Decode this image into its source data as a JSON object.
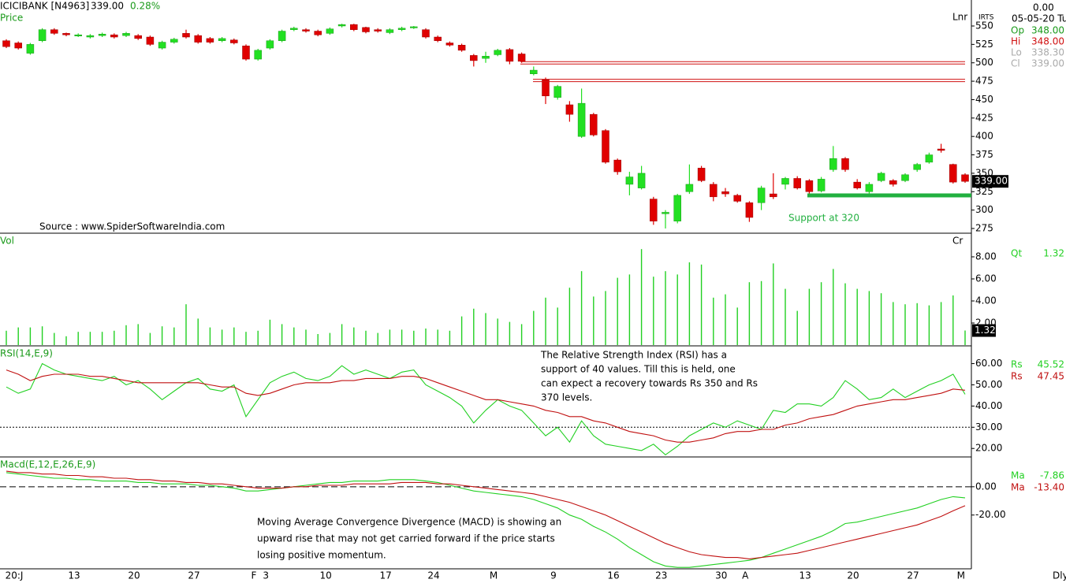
{
  "header": {
    "symbol": "ICICIBANK [N4963]",
    "last": "339.00",
    "change": "0.28%",
    "top_right": "0.00",
    "irts": "IRTS",
    "date": "05-05-20 Tu",
    "ohlc": [
      {
        "label": "Op",
        "value": "348.00"
      },
      {
        "label": "Hi",
        "value": "348.00"
      },
      {
        "label": "Lo",
        "value": "338.30"
      },
      {
        "label": "Cl",
        "value": "339.00"
      }
    ],
    "period": "Dly",
    "source": "Source : www.SpiderSoftwareIndia.com"
  },
  "chart_data": [
    {
      "type": "candlestick",
      "title": "Price",
      "scale_label": "Lnr",
      "up_color": "#22e022",
      "down_color": "#e00000",
      "categories": [
        "20:J",
        null,
        null,
        null,
        null,
        "13",
        null,
        null,
        null,
        null,
        "20",
        null,
        null,
        null,
        null,
        "27",
        null,
        null,
        null,
        null,
        "F",
        "3",
        null,
        null,
        null,
        null,
        "10",
        null,
        null,
        null,
        null,
        "17",
        null,
        null,
        null,
        "24",
        null,
        null,
        null,
        null,
        "M",
        null,
        null,
        null,
        null,
        "9",
        null,
        null,
        null,
        null,
        "16",
        null,
        null,
        null,
        "23",
        null,
        null,
        null,
        null,
        "30",
        null,
        "A",
        null,
        null,
        null,
        null,
        "13",
        null,
        null,
        null,
        "20",
        null,
        null,
        null,
        null,
        "27",
        null,
        null,
        null,
        "M",
        null
      ],
      "open": [
        530,
        527,
        513,
        530,
        545,
        540,
        537,
        535,
        537,
        538,
        537,
        537,
        535,
        520,
        528,
        540,
        537,
        533,
        530,
        531,
        523,
        505,
        520,
        530,
        545,
        545,
        543,
        540,
        550,
        552,
        548,
        545,
        541,
        545,
        548,
        545,
        535,
        527,
        524,
        510,
        506,
        511,
        518,
        512,
        485,
        477,
        453,
        443,
        400,
        430,
        408,
        368,
        335,
        330,
        315,
        295,
        285,
        325,
        357,
        335,
        325,
        320,
        310,
        310,
        322,
        335,
        343,
        340,
        326,
        355,
        370,
        338,
        325,
        340,
        340,
        340,
        355,
        365,
        383,
        362,
        348
      ],
      "high": [
        532,
        529,
        527,
        547,
        547,
        541,
        540,
        539,
        541,
        540,
        542,
        539,
        537,
        530,
        534,
        545,
        539,
        535,
        535,
        533,
        525,
        519,
        532,
        545,
        549,
        547,
        545,
        548,
        553,
        553,
        549,
        547,
        547,
        549,
        550,
        547,
        537,
        529,
        526,
        512,
        515,
        519,
        520,
        514,
        495,
        480,
        470,
        448,
        465,
        432,
        410,
        370,
        352,
        360,
        318,
        300,
        322,
        362,
        360,
        338,
        330,
        322,
        312,
        333,
        350,
        345,
        346,
        342,
        345,
        387,
        372,
        342,
        338,
        352,
        342,
        350,
        364,
        378,
        390,
        363,
        350
      ],
      "low": [
        520,
        518,
        511,
        528,
        538,
        536,
        535,
        533,
        535,
        533,
        535,
        531,
        523,
        518,
        526,
        533,
        526,
        526,
        528,
        525,
        503,
        503,
        518,
        528,
        543,
        541,
        536,
        538,
        548,
        543,
        540,
        541,
        539,
        543,
        546,
        533,
        528,
        522,
        515,
        495,
        500,
        509,
        498,
        500,
        483,
        444,
        450,
        420,
        398,
        400,
        363,
        348,
        320,
        328,
        280,
        275,
        282,
        322,
        338,
        312,
        318,
        310,
        284,
        300,
        315,
        328,
        328,
        322,
        324,
        352,
        352,
        328,
        322,
        338,
        332,
        338,
        352,
        363,
        378,
        336,
        337
      ],
      "close": [
        522,
        520,
        525,
        545,
        540,
        538,
        538,
        537,
        539,
        535,
        540,
        533,
        525,
        528,
        532,
        535,
        528,
        528,
        533,
        527,
        505,
        517,
        530,
        543,
        547,
        543,
        538,
        546,
        552,
        545,
        542,
        543,
        545,
        547,
        549,
        535,
        530,
        524,
        517,
        503,
        509,
        517,
        502,
        502,
        490,
        455,
        468,
        430,
        445,
        402,
        365,
        352,
        345,
        350,
        285,
        297,
        320,
        335,
        340,
        318,
        322,
        312,
        290,
        330,
        318,
        343,
        330,
        325,
        342,
        370,
        355,
        330,
        335,
        350,
        335,
        348,
        362,
        375,
        381,
        338,
        339
      ],
      "ylim": [
        268.6,
        585.3
      ],
      "yticks": [
        275,
        300,
        325,
        350,
        375,
        400,
        425,
        450,
        475,
        500,
        525,
        550
      ],
      "resistance_levels": [
        500,
        476
      ],
      "resistance_color": "#d01010",
      "support": {
        "value": 320,
        "label": "Support at 320",
        "color": "#22b040"
      }
    },
    {
      "type": "bar",
      "title": "Vol",
      "scale_label": "Cr",
      "name": "Qt",
      "value_label": "1.32",
      "color": "#22d022",
      "values": [
        1.3,
        1.6,
        1.6,
        1.7,
        1.1,
        0.8,
        1.2,
        1.2,
        1.2,
        1.3,
        1.8,
        1.9,
        1.1,
        1.7,
        1.6,
        3.7,
        2.4,
        1.6,
        1.4,
        1.6,
        1.2,
        1.3,
        2.3,
        1.9,
        1.6,
        1.4,
        1.0,
        1.1,
        1.9,
        1.6,
        1.3,
        1.1,
        1.4,
        1.4,
        1.3,
        1.5,
        1.4,
        1.3,
        2.6,
        3.3,
        2.9,
        2.4,
        2.1,
        1.9,
        3.1,
        4.3,
        3.4,
        5.2,
        6.7,
        4.4,
        4.9,
        6.1,
        6.4,
        8.7,
        6.2,
        6.7,
        6.4,
        7.5,
        7.3,
        4.3,
        4.6,
        3.4,
        5.7,
        5.8,
        7.4,
        5.1,
        3.1,
        5.1,
        5.7,
        6.9,
        5.6,
        5.1,
        4.9,
        4.7,
        3.9,
        3.7,
        3.8,
        3.6,
        3.9,
        4.5,
        1.32
      ],
      "ylim": [
        0,
        10.07
      ],
      "yticks": [
        {
          "value": 2,
          "label": "2.00"
        },
        {
          "value": 4,
          "label": "4.00"
        },
        {
          "value": 6,
          "label": "6.00"
        },
        {
          "value": 8,
          "label": "8.00"
        }
      ]
    },
    {
      "type": "line",
      "title": "RSI(14,E,9)",
      "series": [
        {
          "name": "Rs",
          "color": "#22d022",
          "value_label": "45.52",
          "values": [
            49,
            46,
            48,
            60,
            57,
            55,
            54,
            53,
            52,
            54,
            50,
            52,
            48,
            43,
            47,
            51,
            53,
            48,
            47,
            50,
            35,
            43,
            51,
            54,
            56,
            53,
            52,
            54,
            59,
            55,
            57,
            55,
            53,
            56,
            57,
            50,
            47,
            44,
            40,
            32,
            38,
            43,
            40,
            38,
            32,
            26,
            30,
            23,
            33,
            26,
            22,
            21,
            20,
            19,
            22,
            17,
            21,
            26,
            29,
            32,
            30,
            33,
            31,
            29,
            38,
            37,
            41,
            41,
            40,
            44,
            52,
            48,
            43,
            44,
            48,
            44,
            47,
            50,
            52,
            55,
            45.52
          ]
        },
        {
          "name": "Rs",
          "color": "#c01010",
          "value_label": "47.45",
          "values": [
            57,
            55,
            52,
            54,
            55,
            55,
            55,
            54,
            54,
            53,
            52,
            51,
            51,
            51,
            51,
            51,
            51,
            50,
            49,
            49,
            46,
            45,
            46,
            48,
            50,
            51,
            51,
            51,
            52,
            52,
            53,
            53,
            53,
            54,
            54,
            53,
            51,
            49,
            47,
            45,
            43,
            43,
            42,
            41,
            40,
            38,
            37,
            35,
            35,
            33,
            32,
            30,
            28,
            27,
            26,
            24,
            23,
            23,
            24,
            25,
            27,
            28,
            28,
            29,
            29,
            31,
            32,
            34,
            35,
            36,
            38,
            40,
            41,
            42,
            43,
            43,
            44,
            45,
            46,
            48,
            47.45
          ]
        }
      ],
      "reference_line": 30,
      "ylim": [
        16,
        68
      ],
      "yticks": [
        {
          "value": 20,
          "label": "20.00"
        },
        {
          "value": 30,
          "label": "30.00"
        },
        {
          "value": 40,
          "label": "40.00"
        },
        {
          "value": 50,
          "label": "50.00"
        },
        {
          "value": 60,
          "label": "60.00"
        }
      ],
      "annotation": [
        "The Relative Strength Index (RSI) has a",
        "support of 40 values. Till this is held, one",
        "can expect a recovery towards Rs 350 and Rs",
        "370 levels."
      ]
    },
    {
      "type": "line",
      "title": "Macd(E,12,E,26,E,9)",
      "series": [
        {
          "name": "Ma",
          "color": "#22d022",
          "value_label": "-7.86",
          "values": [
            10,
            9,
            8,
            7,
            6,
            6,
            5,
            5,
            4,
            4,
            4,
            3,
            3,
            2,
            2,
            2,
            1,
            1,
            0,
            -1,
            -3,
            -3,
            -2,
            -1,
            0,
            1,
            2,
            3,
            3,
            4,
            4,
            4,
            5,
            5,
            5,
            4,
            3,
            1,
            -1,
            -3,
            -4,
            -5,
            -6,
            -7,
            -9,
            -12,
            -15,
            -20,
            -23,
            -28,
            -32,
            -37,
            -43,
            -48,
            -53,
            -56,
            -57,
            -57,
            -56,
            -55,
            -54,
            -53,
            -52,
            -50,
            -47,
            -44,
            -41,
            -38,
            -35,
            -31,
            -26,
            -25,
            -23,
            -21,
            -19,
            -17,
            -15,
            -12,
            -9,
            -7,
            -7.86
          ]
        },
        {
          "name": "Ma",
          "color": "#c01010",
          "value_label": "-13.40",
          "values": [
            11,
            10,
            10,
            9,
            9,
            8,
            8,
            7,
            7,
            6,
            6,
            5,
            5,
            4,
            4,
            3,
            3,
            2,
            2,
            1,
            0,
            -1,
            -1,
            -1,
            0,
            0,
            1,
            1,
            1,
            2,
            2,
            2,
            2,
            3,
            3,
            3,
            2,
            2,
            1,
            0,
            -1,
            -2,
            -3,
            -4,
            -5,
            -7,
            -9,
            -11,
            -14,
            -17,
            -20,
            -24,
            -28,
            -32,
            -36,
            -40,
            -43,
            -46,
            -48,
            -49,
            -50,
            -50,
            -51,
            -50,
            -49,
            -48,
            -47,
            -45,
            -43,
            -41,
            -39,
            -37,
            -35,
            -33,
            -31,
            -29,
            -27,
            -24,
            -21,
            -17,
            -13.4
          ]
        }
      ],
      "reference_line": 0,
      "ylim": [
        -58,
        20.5
      ],
      "yticks": [
        {
          "value": 0,
          "label": "0.00"
        },
        {
          "value": -20,
          "label": "-20.00"
        }
      ],
      "annotation": [
        "Moving Average Convergence Divergence (MACD) is showing an",
        "upward rise that may not get carried forward if the price starts",
        "losing positive momentum."
      ]
    }
  ]
}
